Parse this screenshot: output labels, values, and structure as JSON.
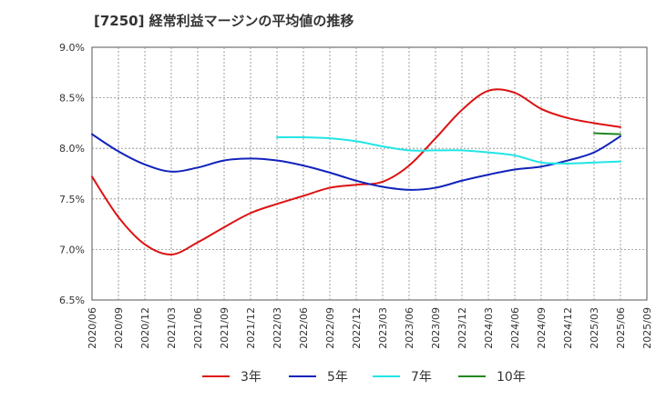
{
  "chart_data": {
    "type": "line",
    "title": "[7250]  経常利益マージンの平均値の推移",
    "xlabel": "",
    "ylabel": "",
    "ylim": [
      6.5,
      9.0
    ],
    "yticks": [
      "6.5%",
      "7.0%",
      "7.5%",
      "8.0%",
      "8.5%",
      "9.0%"
    ],
    "categories": [
      "2020/06",
      "2020/09",
      "2020/12",
      "2021/03",
      "2021/06",
      "2021/09",
      "2021/12",
      "2022/03",
      "2022/06",
      "2022/09",
      "2022/12",
      "2023/03",
      "2023/06",
      "2023/09",
      "2023/12",
      "2024/03",
      "2024/06",
      "2024/09",
      "2024/12",
      "2025/03",
      "2025/06",
      "2025/09"
    ],
    "grid": true,
    "legend_position": "bottom",
    "series": [
      {
        "name": "3年",
        "color": "#dd1111",
        "values": [
          7.72,
          7.32,
          7.05,
          6.95,
          7.07,
          7.22,
          7.36,
          7.45,
          7.53,
          7.61,
          7.64,
          7.67,
          7.83,
          8.1,
          8.38,
          8.57,
          8.55,
          8.39,
          8.3,
          8.25,
          8.21,
          null
        ]
      },
      {
        "name": "5年",
        "color": "#1122bb",
        "values": [
          8.14,
          7.97,
          7.84,
          7.77,
          7.81,
          7.88,
          7.9,
          7.88,
          7.83,
          7.76,
          7.68,
          7.62,
          7.59,
          7.61,
          7.68,
          7.74,
          7.79,
          7.82,
          7.88,
          7.96,
          8.12,
          null
        ]
      },
      {
        "name": "7年",
        "color": "#22e5e5",
        "values": [
          null,
          null,
          null,
          null,
          null,
          null,
          null,
          8.11,
          8.11,
          8.1,
          8.07,
          8.02,
          7.98,
          7.98,
          7.98,
          7.96,
          7.93,
          7.86,
          7.85,
          7.86,
          7.87,
          null
        ]
      },
      {
        "name": "10年",
        "color": "#228822",
        "values": [
          null,
          null,
          null,
          null,
          null,
          null,
          null,
          null,
          null,
          null,
          null,
          null,
          null,
          null,
          null,
          null,
          null,
          null,
          null,
          8.15,
          8.14,
          null
        ]
      }
    ]
  }
}
